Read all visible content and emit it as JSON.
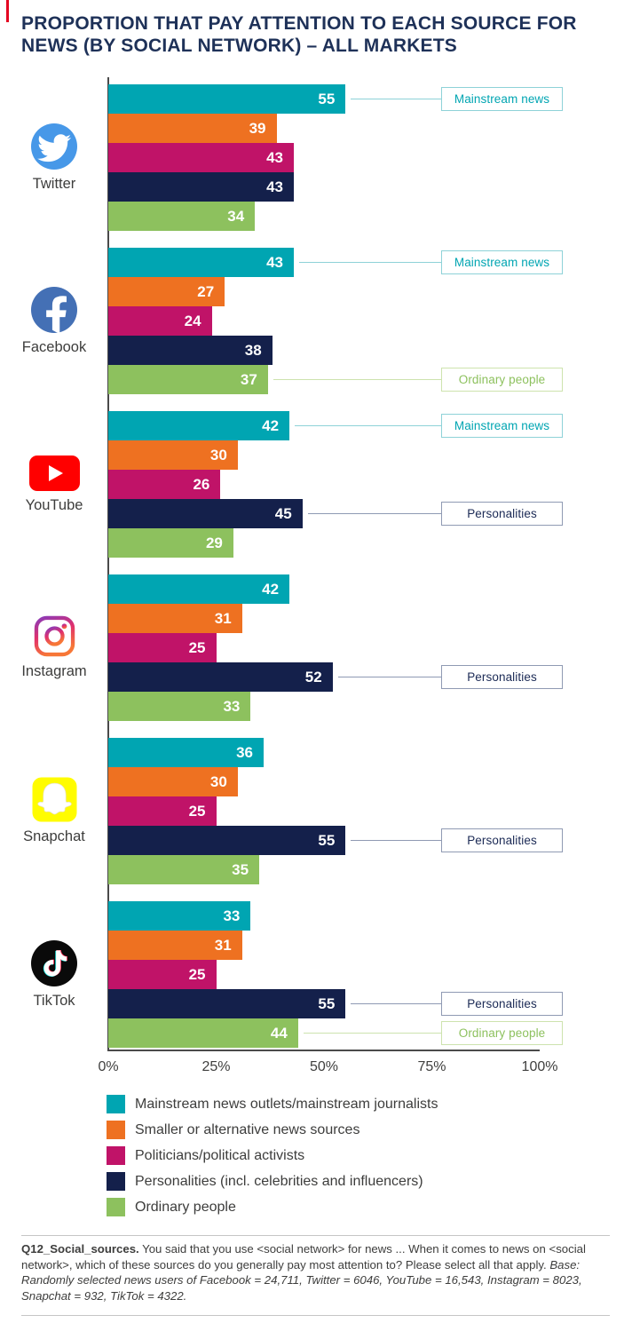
{
  "title": "PROPORTION THAT PAY ATTENTION TO EACH SOURCE FOR NEWS (BY SOCIAL NETWORK) – ALL MARKETS",
  "chart_data": {
    "type": "bar",
    "orientation": "horizontal",
    "title": "Proportion that pay attention to each source for news (by social network) - all markets",
    "xlim": [
      0,
      100
    ],
    "xtick_labels": [
      "0%",
      "25%",
      "50%",
      "75%",
      "100%"
    ],
    "xtick_values": [
      0,
      25,
      50,
      75,
      100
    ],
    "grid": false,
    "legend_position": "bottom",
    "series": [
      {
        "name": "Mainstream news outlets/mainstream journalists",
        "color": "#00a5b2"
      },
      {
        "name": "Smaller or alternative news sources",
        "color": "#ee7121"
      },
      {
        "name": "Politicians/political activists",
        "color": "#c01368"
      },
      {
        "name": "Personalities (incl. celebrities and influencers)",
        "color": "#14204b"
      },
      {
        "name": "Ordinary people",
        "color": "#8dc15e"
      }
    ],
    "groups": [
      {
        "network": "Twitter",
        "values": [
          55,
          39,
          43,
          43,
          34
        ],
        "callouts": [
          {
            "series": 0,
            "label": "Mainstream news"
          }
        ]
      },
      {
        "network": "Facebook",
        "values": [
          43,
          27,
          24,
          38,
          37
        ],
        "callouts": [
          {
            "series": 0,
            "label": "Mainstream news"
          },
          {
            "series": 4,
            "label": "Ordinary people"
          }
        ]
      },
      {
        "network": "YouTube",
        "values": [
          42,
          30,
          26,
          45,
          29
        ],
        "callouts": [
          {
            "series": 0,
            "label": "Mainstream news"
          },
          {
            "series": 3,
            "label": "Personalities"
          }
        ]
      },
      {
        "network": "Instagram",
        "values": [
          42,
          31,
          25,
          52,
          33
        ],
        "callouts": [
          {
            "series": 3,
            "label": "Personalities"
          }
        ]
      },
      {
        "network": "Snapchat",
        "values": [
          36,
          30,
          25,
          55,
          35
        ],
        "callouts": [
          {
            "series": 3,
            "label": "Personalities"
          }
        ]
      },
      {
        "network": "TikTok",
        "values": [
          33,
          31,
          25,
          55,
          44
        ],
        "callouts": [
          {
            "series": 3,
            "label": "Personalities"
          },
          {
            "series": 4,
            "label": "Ordinary people"
          }
        ]
      }
    ],
    "callout_styles": {
      "0": {
        "text": "#00a5b2",
        "border": "#8ed2d8"
      },
      "3": {
        "text": "#1b2a55",
        "border": "#8f9ab3"
      },
      "4": {
        "text": "#8dc15e",
        "border": "#cde3ae"
      }
    }
  },
  "footnote": {
    "lead": "Q12_Social_sources.",
    "body": " You said that you use <social network> for news ... When it comes to news on <social network>, which of these sources do you generally pay most attention to? Please select all that apply. ",
    "base": "Base: Randomly selected news users of Facebook = 24,711, Twitter = 6046, YouTube = 16,543, Instagram = 8023, Snapchat = 932, TikTok = 4322."
  }
}
